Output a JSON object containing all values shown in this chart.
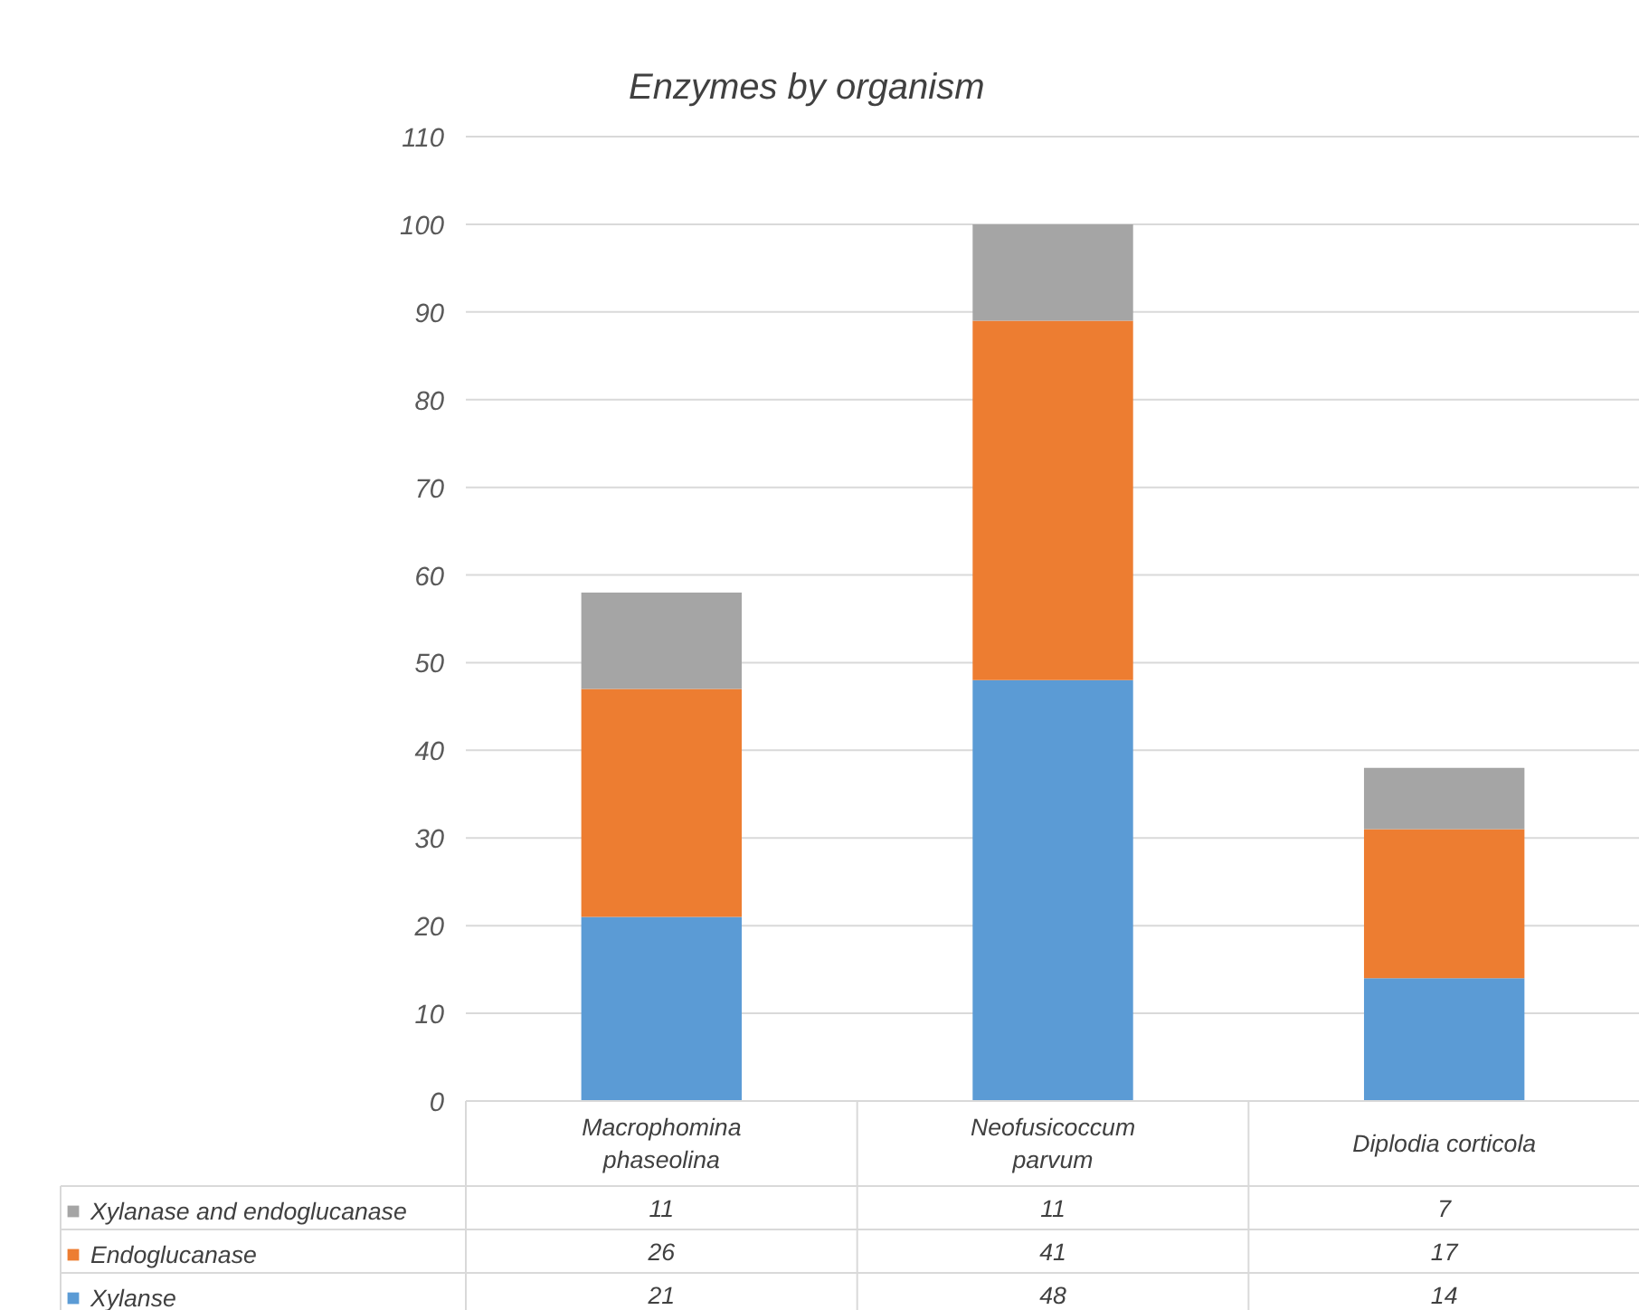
{
  "chart_data": {
    "type": "bar",
    "title": "Enzymes by organism",
    "stacked": true,
    "categories": [
      "Macrophomina phaseolina",
      "Neofusicoccum parvum",
      "Diplodia corticola"
    ],
    "series": [
      {
        "name": "Xylanse",
        "color": "#5b9bd5",
        "values": [
          21,
          48,
          14
        ]
      },
      {
        "name": "Endoglucanase",
        "color": "#ed7d31",
        "values": [
          26,
          41,
          17
        ]
      },
      {
        "name": "Xylanase and endoglucanase",
        "color": "#a5a5a5",
        "values": [
          11,
          11,
          7
        ]
      }
    ],
    "ylim": [
      0,
      110
    ],
    "yticks": [
      0,
      10,
      20,
      30,
      40,
      50,
      60,
      70,
      80,
      90,
      100,
      110
    ],
    "grid": "y",
    "legend": "bottom left",
    "data_labels": true
  }
}
